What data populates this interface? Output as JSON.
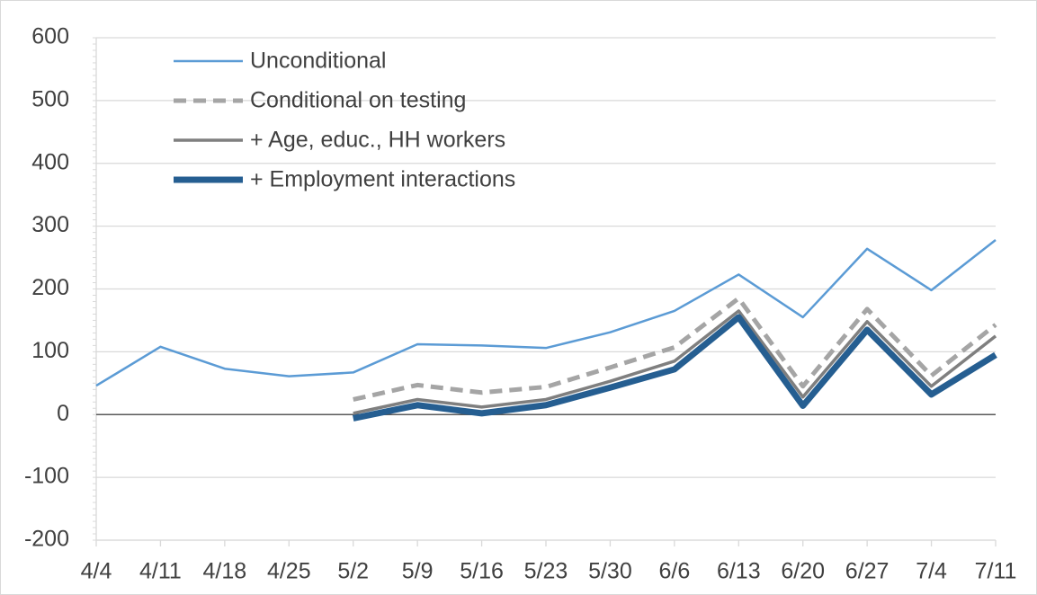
{
  "chart_data": {
    "type": "line",
    "categories": [
      "4/4",
      "4/11",
      "4/18",
      "4/25",
      "5/2",
      "5/9",
      "5/16",
      "5/23",
      "5/30",
      "6/6",
      "6/13",
      "6/20",
      "6/27",
      "7/4",
      "7/11"
    ],
    "series": [
      {
        "name": "Unconditional",
        "color": "#5b9bd5",
        "values": [
          46,
          108,
          73,
          61,
          67,
          112,
          110,
          106,
          131,
          165,
          223,
          155,
          264,
          198,
          278
        ]
      },
      {
        "name": "Conditional on testing",
        "color": "#a5a5a5",
        "values": [
          null,
          null,
          null,
          null,
          24,
          47,
          35,
          44,
          75,
          107,
          185,
          45,
          168,
          62,
          143
        ]
      },
      {
        "name": "+ Age, educ., HH workers",
        "color": "#7f7f7f",
        "values": [
          null,
          null,
          null,
          null,
          2,
          24,
          12,
          24,
          53,
          85,
          165,
          28,
          148,
          45,
          125
        ]
      },
      {
        "name": "+ Employment interactions",
        "color": "#255e91",
        "values": [
          null,
          null,
          null,
          null,
          -6,
          15,
          2,
          15,
          43,
          72,
          155,
          14,
          135,
          32,
          95
        ]
      }
    ],
    "ylim": [
      -200,
      600
    ],
    "yticks": [
      -200,
      -100,
      0,
      100,
      200,
      300,
      400,
      500,
      600
    ],
    "grid": true,
    "legend": "top-left"
  }
}
